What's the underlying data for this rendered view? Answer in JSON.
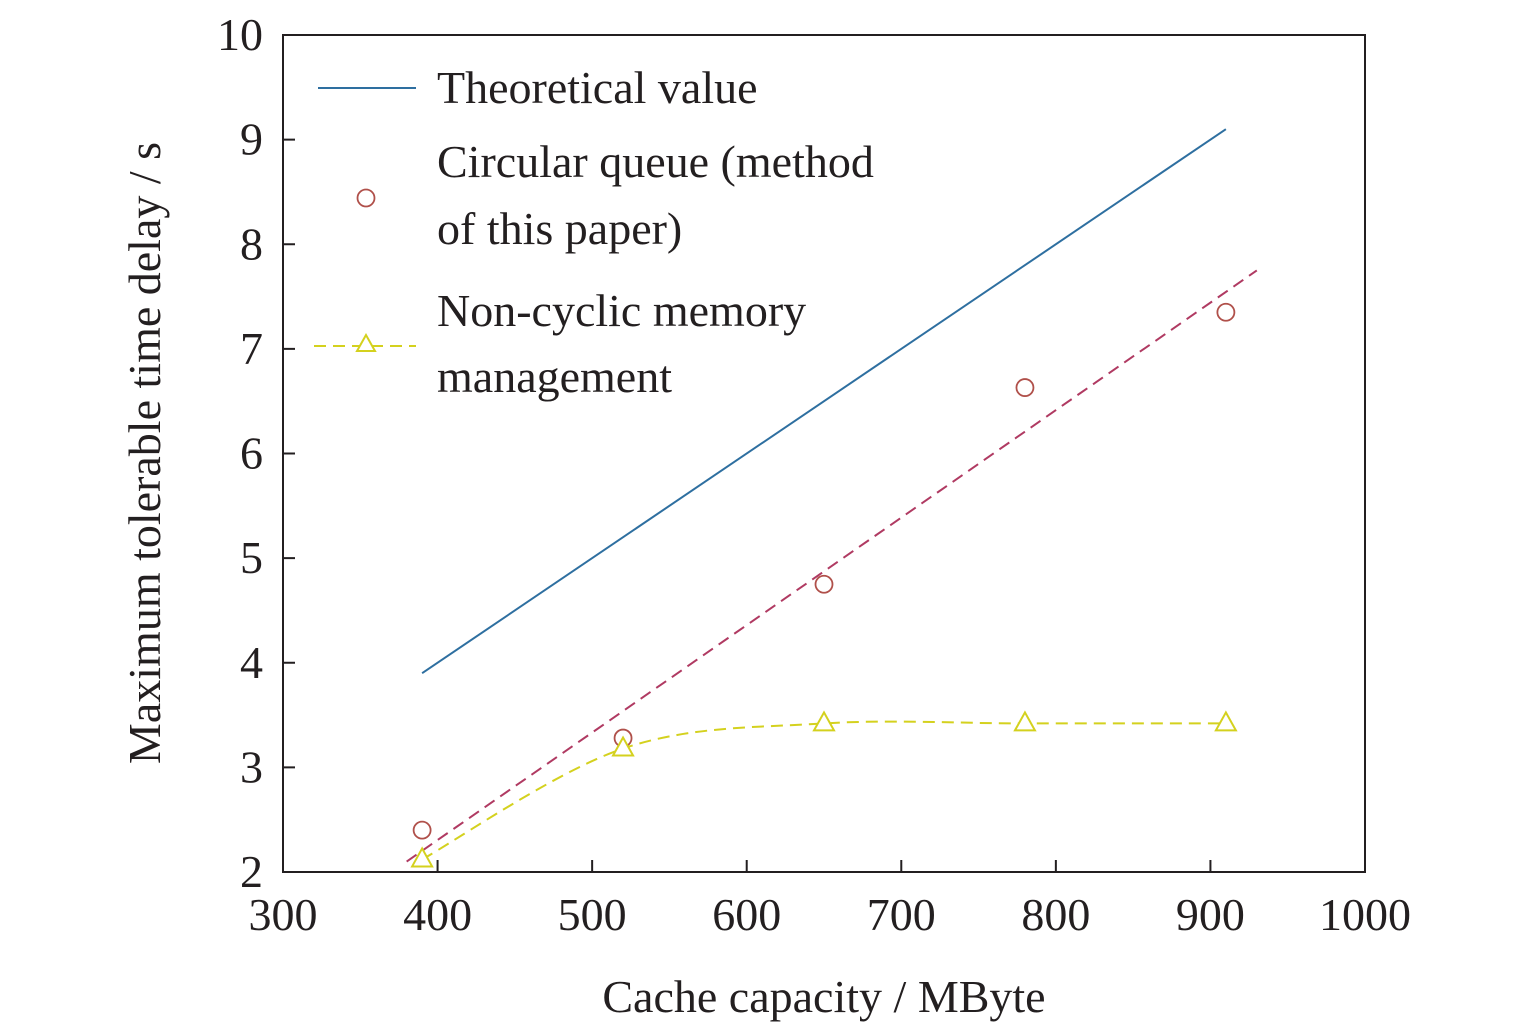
{
  "chart_data": {
    "type": "line",
    "xlabel": "Cache capacity / MByte",
    "ylabel": "Maximum tolerable time delay / s",
    "xlim": [
      300,
      1000
    ],
    "ylim": [
      2,
      10
    ],
    "xticks": [
      "300",
      "400",
      "500",
      "600",
      "700",
      "800",
      "900",
      "1000"
    ],
    "yticks": [
      "2",
      "3",
      "4",
      "5",
      "6",
      "7",
      "8",
      "9",
      "10"
    ],
    "legend_position": "top-left",
    "series": [
      {
        "name": "Theoretical value",
        "style": "solid-line",
        "color": "#2e6fa0",
        "x": [
          390,
          910
        ],
        "y": [
          3.9,
          9.1
        ]
      },
      {
        "name": "Circular queue (method of this paper)",
        "style": "circle-markers",
        "color": "#b0504a",
        "x": [
          390,
          520,
          650,
          780,
          910
        ],
        "y": [
          2.4,
          3.28,
          4.75,
          6.63,
          7.35
        ],
        "fit": {
          "style": "dashed",
          "color": "#b03a62",
          "x": [
            380,
            930
          ],
          "y": [
            2.1,
            7.75
          ]
        }
      },
      {
        "name": "Non-cyclic memory management",
        "style": "triangle-markers-dashed",
        "color": "#d4d11e",
        "x": [
          390,
          520,
          650,
          780,
          910
        ],
        "y": [
          2.12,
          3.18,
          3.42,
          3.42,
          3.42
        ]
      }
    ],
    "legend": [
      {
        "lines": [
          "Theoretical value"
        ]
      },
      {
        "lines": [
          "Circular queue (method",
          "of this paper)"
        ]
      },
      {
        "lines": [
          "Non-cyclic memory",
          "management"
        ]
      }
    ]
  }
}
